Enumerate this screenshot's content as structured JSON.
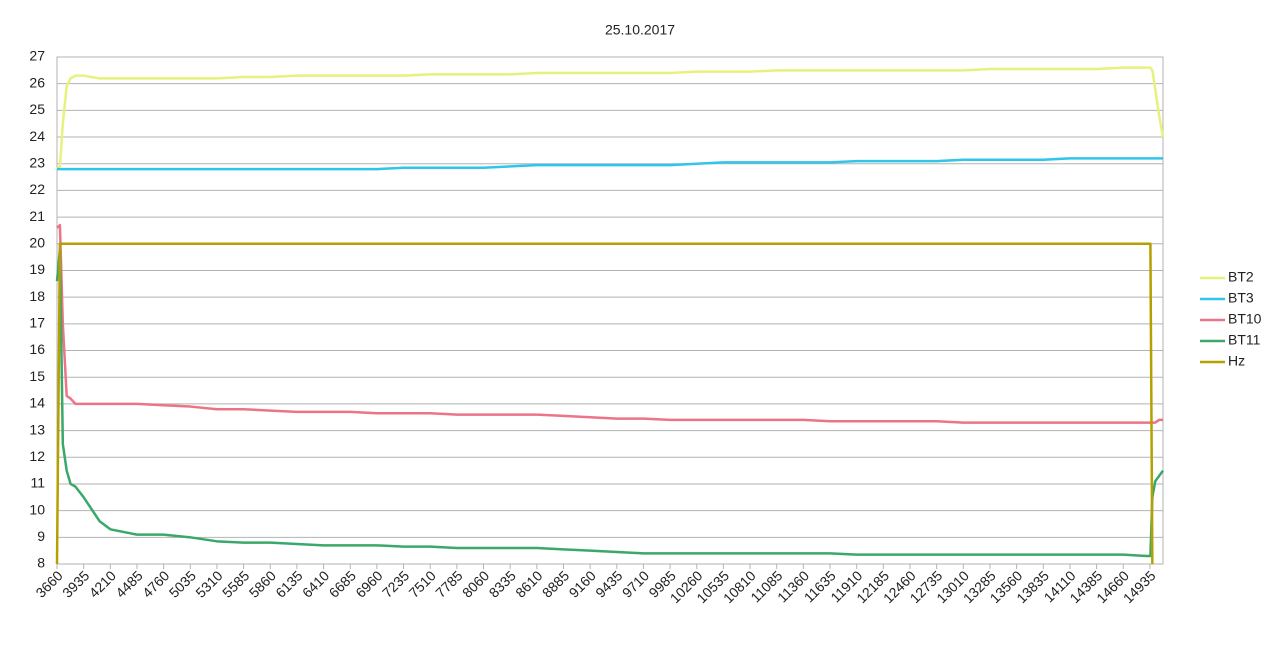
{
  "chart_data": {
    "type": "line",
    "title": "25.10.2017",
    "x": [
      3660,
      3690,
      3720,
      3760,
      3800,
      3850,
      3935,
      4100,
      4210,
      4485,
      4760,
      5035,
      5310,
      5585,
      5860,
      6135,
      6410,
      6685,
      6960,
      7235,
      7510,
      7785,
      8060,
      8335,
      8610,
      8885,
      9160,
      9435,
      9710,
      9985,
      10260,
      10535,
      10810,
      11085,
      11360,
      11635,
      11910,
      12185,
      12460,
      12735,
      13010,
      13285,
      13560,
      13835,
      14110,
      14385,
      14660,
      14900,
      14940,
      14960,
      14990,
      15030,
      15070
    ],
    "series": [
      {
        "name": "BT2",
        "color": "#e6f27c",
        "values": [
          22.8,
          22.9,
          24.5,
          25.9,
          26.2,
          26.3,
          26.3,
          26.2,
          26.2,
          26.2,
          26.2,
          26.2,
          26.2,
          26.25,
          26.25,
          26.3,
          26.3,
          26.3,
          26.3,
          26.3,
          26.35,
          26.35,
          26.35,
          26.35,
          26.4,
          26.4,
          26.4,
          26.4,
          26.4,
          26.4,
          26.45,
          26.45,
          26.45,
          26.5,
          26.5,
          26.5,
          26.5,
          26.5,
          26.5,
          26.5,
          26.5,
          26.55,
          26.55,
          26.55,
          26.55,
          26.55,
          26.6,
          26.6,
          26.6,
          26.5,
          25.8,
          24.8,
          24.0
        ]
      },
      {
        "name": "BT3",
        "color": "#2fc6ea",
        "values": [
          22.8,
          22.8,
          22.8,
          22.8,
          22.8,
          22.8,
          22.8,
          22.8,
          22.8,
          22.8,
          22.8,
          22.8,
          22.8,
          22.8,
          22.8,
          22.8,
          22.8,
          22.8,
          22.8,
          22.85,
          22.85,
          22.85,
          22.85,
          22.9,
          22.95,
          22.95,
          22.95,
          22.95,
          22.95,
          22.95,
          23.0,
          23.05,
          23.05,
          23.05,
          23.05,
          23.05,
          23.1,
          23.1,
          23.1,
          23.1,
          23.15,
          23.15,
          23.15,
          23.15,
          23.2,
          23.2,
          23.2,
          23.2,
          23.2,
          23.2,
          23.2,
          23.2,
          23.2
        ]
      },
      {
        "name": "BT10",
        "color": "#ec7487",
        "values": [
          20.6,
          20.7,
          17.0,
          14.3,
          14.2,
          14.0,
          14.0,
          14.0,
          14.0,
          14.0,
          13.95,
          13.9,
          13.8,
          13.8,
          13.75,
          13.7,
          13.7,
          13.7,
          13.65,
          13.65,
          13.65,
          13.6,
          13.6,
          13.6,
          13.6,
          13.55,
          13.5,
          13.45,
          13.45,
          13.4,
          13.4,
          13.4,
          13.4,
          13.4,
          13.4,
          13.35,
          13.35,
          13.35,
          13.35,
          13.35,
          13.3,
          13.3,
          13.3,
          13.3,
          13.3,
          13.3,
          13.3,
          13.3,
          13.3,
          13.3,
          13.3,
          13.4,
          13.4
        ]
      },
      {
        "name": "BT11",
        "color": "#3aa86a",
        "values": [
          18.6,
          19.8,
          12.5,
          11.5,
          11.0,
          10.9,
          10.5,
          9.6,
          9.3,
          9.1,
          9.1,
          9.0,
          8.85,
          8.8,
          8.8,
          8.75,
          8.7,
          8.7,
          8.7,
          8.65,
          8.65,
          8.6,
          8.6,
          8.6,
          8.6,
          8.55,
          8.5,
          8.45,
          8.4,
          8.4,
          8.4,
          8.4,
          8.4,
          8.4,
          8.4,
          8.4,
          8.35,
          8.35,
          8.35,
          8.35,
          8.35,
          8.35,
          8.35,
          8.35,
          8.35,
          8.35,
          8.35,
          8.3,
          8.3,
          10.5,
          11.1,
          11.3,
          11.5
        ]
      },
      {
        "name": "Hz",
        "color": "#b5a000",
        "values": [
          8,
          20.0,
          20.0,
          20.0,
          20.0,
          20.0,
          20.0,
          20.0,
          20.0,
          20.0,
          20.0,
          20.0,
          20.0,
          20.0,
          20.0,
          20.0,
          20.0,
          20.0,
          20.0,
          20.0,
          20.0,
          20.0,
          20.0,
          20.0,
          20.0,
          20.0,
          20.0,
          20.0,
          20.0,
          20.0,
          20.0,
          20.0,
          20.0,
          20.0,
          20.0,
          20.0,
          20.0,
          20.0,
          20.0,
          20.0,
          20.0,
          20.0,
          20.0,
          20.0,
          20.0,
          20.0,
          20.0,
          20.0,
          20.0,
          8,
          null,
          null,
          null
        ]
      }
    ],
    "xlim": [
      3660,
      15070
    ],
    "xticks": [
      3660,
      3935,
      4210,
      4485,
      4760,
      5035,
      5310,
      5585,
      5860,
      6135,
      6410,
      6685,
      6960,
      7235,
      7510,
      7785,
      8060,
      8335,
      8610,
      8885,
      9160,
      9435,
      9710,
      9985,
      10260,
      10535,
      10810,
      11085,
      11360,
      11635,
      11910,
      12185,
      12460,
      12735,
      13010,
      13285,
      13560,
      13835,
      14110,
      14385,
      14660,
      14935
    ],
    "ylim": [
      8,
      27
    ],
    "yticks": [
      8,
      9,
      10,
      11,
      12,
      13,
      14,
      15,
      16,
      17,
      18,
      19,
      20,
      21,
      22,
      23,
      24,
      25,
      26,
      27
    ],
    "grid": true,
    "legend": "right"
  }
}
